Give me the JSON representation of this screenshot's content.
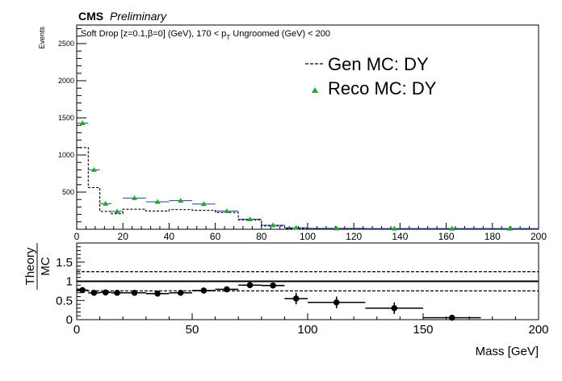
{
  "header": {
    "experiment": "CMS",
    "status": "Preliminary"
  },
  "chart_data": [
    {
      "type": "line",
      "title": "Soft Drop [z=0.1,β=0] (GeV), 170 < p_T Ungroomed (GeV)  < 200",
      "title_parts": {
        "pre": "Soft Drop [z=0.1,",
        "beta": "β",
        "mid": "=0] (GeV), 170 < p",
        "sub": "T",
        "post": " Ungroomed (GeV)  < 200"
      },
      "xlabel": "",
      "ylabel": "Events",
      "xlim": [
        0,
        200
      ],
      "ylim": [
        0,
        2750
      ],
      "x_ticks": [
        0,
        20,
        40,
        60,
        80,
        100,
        120,
        140,
        160,
        180,
        200
      ],
      "y_ticks": [
        0,
        500,
        1000,
        1500,
        2000,
        2500
      ],
      "grid": false,
      "legend_position": "top-right",
      "series": [
        {
          "name": "Gen MC: DY",
          "style": "dashed-step",
          "color": "#000000",
          "bins": [
            [
              0,
              5
            ],
            [
              5,
              10
            ],
            [
              10,
              15
            ],
            [
              15,
              20
            ],
            [
              20,
              30
            ],
            [
              30,
              40
            ],
            [
              40,
              50
            ],
            [
              50,
              60
            ],
            [
              60,
              70
            ],
            [
              70,
              80
            ],
            [
              80,
              90
            ],
            [
              90,
              100
            ],
            [
              100,
              125
            ],
            [
              125,
              150
            ],
            [
              150,
              175
            ],
            [
              175,
              200
            ]
          ],
          "values": [
            1100,
            560,
            240,
            210,
            270,
            245,
            265,
            255,
            225,
            125,
            45,
            12,
            5,
            4,
            3,
            3
          ]
        },
        {
          "name": "Reco MC: DY",
          "style": "triangle-markers",
          "color": "#22aa22",
          "err_color": "#1f3fb0",
          "x": [
            2.5,
            7.5,
            12.5,
            17.5,
            25,
            35,
            45,
            55,
            65,
            75,
            85,
            95,
            112.5,
            137.5,
            162.5,
            187.5
          ],
          "values": [
            1430,
            800,
            345,
            240,
            420,
            370,
            385,
            340,
            245,
            135,
            55,
            20,
            12,
            10,
            10,
            10
          ]
        }
      ]
    },
    {
      "type": "scatter",
      "xlabel": "Mass [GeV]",
      "ylabel": "Theory / MC",
      "ylabel_num": "Theory",
      "ylabel_den": "MC",
      "xlim": [
        0,
        200
      ],
      "ylim": [
        0,
        2.0
      ],
      "x_ticks": [
        0,
        50,
        100,
        150,
        200
      ],
      "y_ticks": [
        0,
        0.5,
        1,
        1.5
      ],
      "y_tick_labels": [
        "0",
        "0.5",
        "1",
        "1.5"
      ],
      "reference_lines": [
        {
          "value": 1.0,
          "style": "solid"
        },
        {
          "value": 1.25,
          "style": "dashed"
        },
        {
          "value": 0.75,
          "style": "dashed"
        }
      ],
      "series": [
        {
          "name": "",
          "color": "#000000",
          "x": [
            2.5,
            7.5,
            12.5,
            17.5,
            25,
            35,
            45,
            55,
            65,
            75,
            85,
            95,
            112.5,
            137.5,
            162.5
          ],
          "x_err": [
            2.5,
            2.5,
            2.5,
            2.5,
            5,
            5,
            5,
            5,
            5,
            5,
            5,
            5,
            12.5,
            12.5,
            12.5
          ],
          "values": [
            0.77,
            0.7,
            0.71,
            0.7,
            0.7,
            0.68,
            0.7,
            0.76,
            0.79,
            0.9,
            0.89,
            0.55,
            0.45,
            0.3,
            0.05
          ],
          "y_err": [
            0.02,
            0.02,
            0.03,
            0.03,
            0.02,
            0.02,
            0.02,
            0.02,
            0.03,
            0.04,
            0.06,
            0.15,
            0.15,
            0.15,
            0.05
          ]
        }
      ]
    }
  ]
}
